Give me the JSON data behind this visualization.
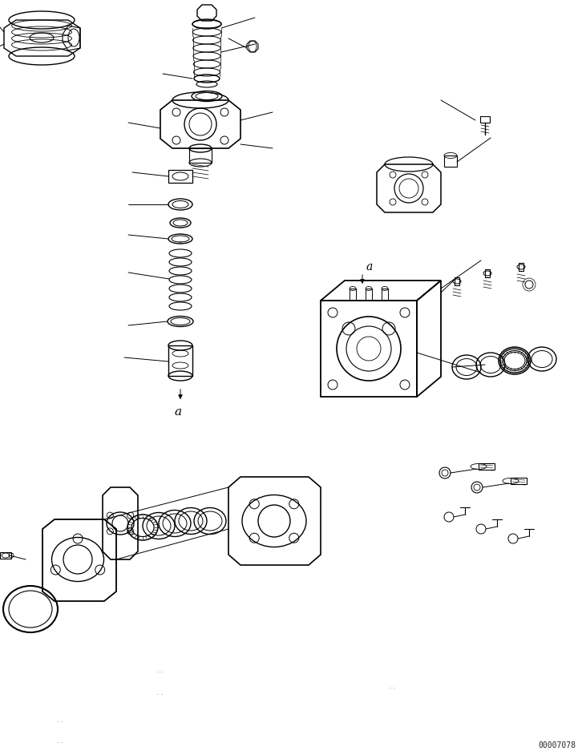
{
  "figure_width": 7.26,
  "figure_height": 9.42,
  "dpi": 100,
  "background_color": "#ffffff",
  "line_color": "#000000",
  "line_width": 0.7,
  "watermark": "00007078"
}
